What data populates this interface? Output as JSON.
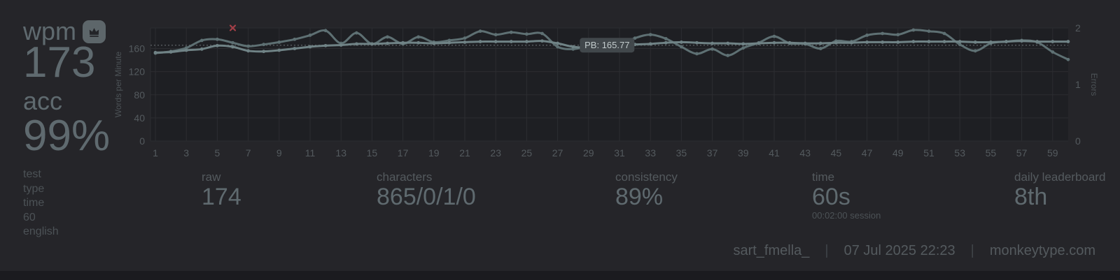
{
  "theme": {
    "background": "#252529",
    "bottom_strip": "#1b1b1f",
    "plot_background": "#1e1f23",
    "gridline": "#2c2d31",
    "tick_label_color": "#545a5e",
    "axis_title_color": "#4c5256",
    "value_color": "#5f6a6f",
    "wpm_line_color": "#708386",
    "raw_line_color": "#5e7073",
    "error_color": "#a23f47",
    "pb_line_color": "#53575b",
    "pb_box_background": "#41474b",
    "pb_box_text": "#c2cbcc",
    "crown_badge_background": "#5d666a",
    "crown_glyph_color": "#232428",
    "separator_color": "#3f4448"
  },
  "header": {
    "wpm_label": "wpm",
    "wpm_value": "173",
    "acc_label": "acc",
    "acc_value": "99%"
  },
  "test_info": {
    "label": "test type",
    "mode": "time 60",
    "language": "english"
  },
  "stats": [
    {
      "label": "raw",
      "value": "174"
    },
    {
      "label": "characters",
      "value": "865/0/1/0"
    },
    {
      "label": "consistency",
      "value": "89%"
    },
    {
      "label": "time",
      "value": "60s",
      "sub": "00:02:00 session"
    },
    {
      "label": "daily leaderboard",
      "value": "8th"
    }
  ],
  "footer": {
    "username": "sart_fmella_",
    "separator": "|",
    "date": "07 Jul 2025 22:23",
    "site": "monkeytype.com"
  },
  "chart_data": {
    "type": "line",
    "x": [
      1,
      2,
      3,
      4,
      5,
      6,
      7,
      8,
      9,
      10,
      11,
      12,
      13,
      14,
      15,
      16,
      17,
      18,
      19,
      20,
      21,
      22,
      23,
      24,
      25,
      26,
      27,
      28,
      29,
      30,
      31,
      32,
      33,
      34,
      35,
      36,
      37,
      38,
      39,
      40,
      41,
      42,
      43,
      44,
      45,
      46,
      47,
      48,
      49,
      50,
      51,
      52,
      53,
      54,
      55,
      56,
      57,
      58,
      59,
      60
    ],
    "xticks": [
      1,
      3,
      5,
      7,
      9,
      11,
      13,
      15,
      17,
      19,
      21,
      23,
      25,
      27,
      29,
      31,
      33,
      35,
      37,
      39,
      41,
      43,
      45,
      47,
      49,
      51,
      53,
      55,
      57,
      59
    ],
    "series": [
      {
        "name": "wpm",
        "values": [
          153,
          154,
          157,
          159,
          165,
          163,
          156,
          155,
          157,
          160,
          163,
          165,
          166,
          168,
          168,
          169,
          170,
          170,
          169,
          170,
          171,
          172,
          172,
          172,
          172,
          173,
          169,
          163,
          162,
          165,
          166,
          167,
          168,
          170,
          171,
          170,
          169,
          169,
          168,
          169,
          170,
          170,
          169,
          169,
          170,
          170,
          171,
          171,
          171,
          172,
          172,
          172,
          172,
          171,
          171,
          172,
          173,
          172,
          172,
          172
        ]
      },
      {
        "name": "raw",
        "values": [
          152,
          155,
          161,
          174,
          176,
          170,
          164,
          167,
          171,
          176,
          183,
          191,
          169,
          187,
          168,
          180,
          168,
          180,
          171,
          174,
          178,
          190,
          184,
          188,
          185,
          186,
          163,
          159,
          164,
          166,
          167,
          178,
          184,
          177,
          163,
          151,
          159,
          148,
          161,
          170,
          181,
          169,
          168,
          160,
          173,
          172,
          183,
          186,
          184,
          192,
          190,
          186,
          167,
          156,
          169,
          172,
          174,
          171,
          154,
          141
        ]
      }
    ],
    "errors": [
      {
        "x": 6,
        "count": 2
      }
    ],
    "pb": {
      "label": "PB: 165.77",
      "value": 165.77
    },
    "ylabel_left": "Words per Minute",
    "ylabel_right": "Errors",
    "yticks_left": [
      0,
      40,
      80,
      120,
      160
    ],
    "yticks_right": [
      0,
      1,
      2
    ],
    "ylim_left": [
      0,
      195.6
    ],
    "ylim_right": [
      0,
      2
    ],
    "grid": true,
    "legend": "none",
    "title": ""
  }
}
